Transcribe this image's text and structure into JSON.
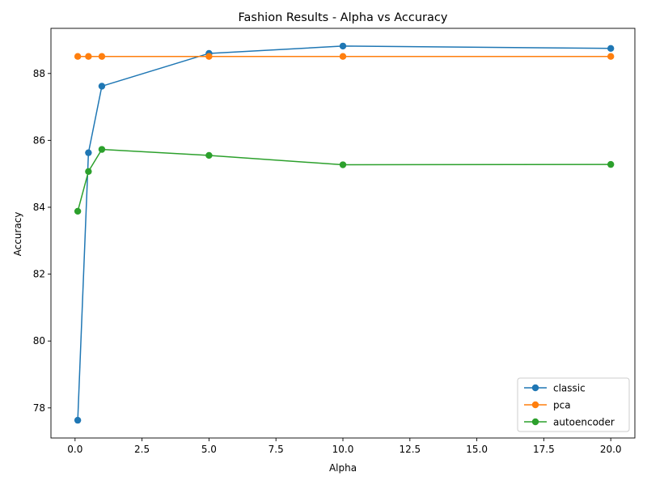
{
  "chart_data": {
    "type": "line",
    "title": "Fashion Results - Alpha vs Accuracy",
    "xlabel": "Alpha",
    "ylabel": "Accuracy",
    "xlim": [
      -0.9,
      20.9
    ],
    "ylim": [
      77.1,
      89.35
    ],
    "xticks": [
      0.0,
      2.5,
      5.0,
      7.5,
      10.0,
      12.5,
      15.0,
      17.5,
      20.0
    ],
    "xtick_labels": [
      "0.0",
      "2.5",
      "5.0",
      "7.5",
      "10.0",
      "12.5",
      "15.0",
      "17.5",
      "20.0"
    ],
    "yticks": [
      78,
      80,
      82,
      84,
      86,
      88
    ],
    "ytick_labels": [
      "78",
      "80",
      "82",
      "84",
      "86",
      "88"
    ],
    "grid": false,
    "legend_position": "lower-right",
    "x": [
      0.1,
      0.5,
      1.0,
      5.0,
      10.0,
      20.0
    ],
    "series": [
      {
        "name": "classic",
        "color": "#1f77b4",
        "marker": "circle",
        "values": [
          77.63,
          85.63,
          87.62,
          88.6,
          88.82,
          88.75
        ]
      },
      {
        "name": "pca",
        "color": "#ff7f0e",
        "marker": "circle",
        "values": [
          88.51,
          88.51,
          88.51,
          88.51,
          88.51,
          88.51
        ]
      },
      {
        "name": "autoencoder",
        "color": "#2ca02c",
        "marker": "circle",
        "values": [
          83.88,
          85.07,
          85.73,
          85.55,
          85.27,
          85.28
        ]
      }
    ]
  }
}
